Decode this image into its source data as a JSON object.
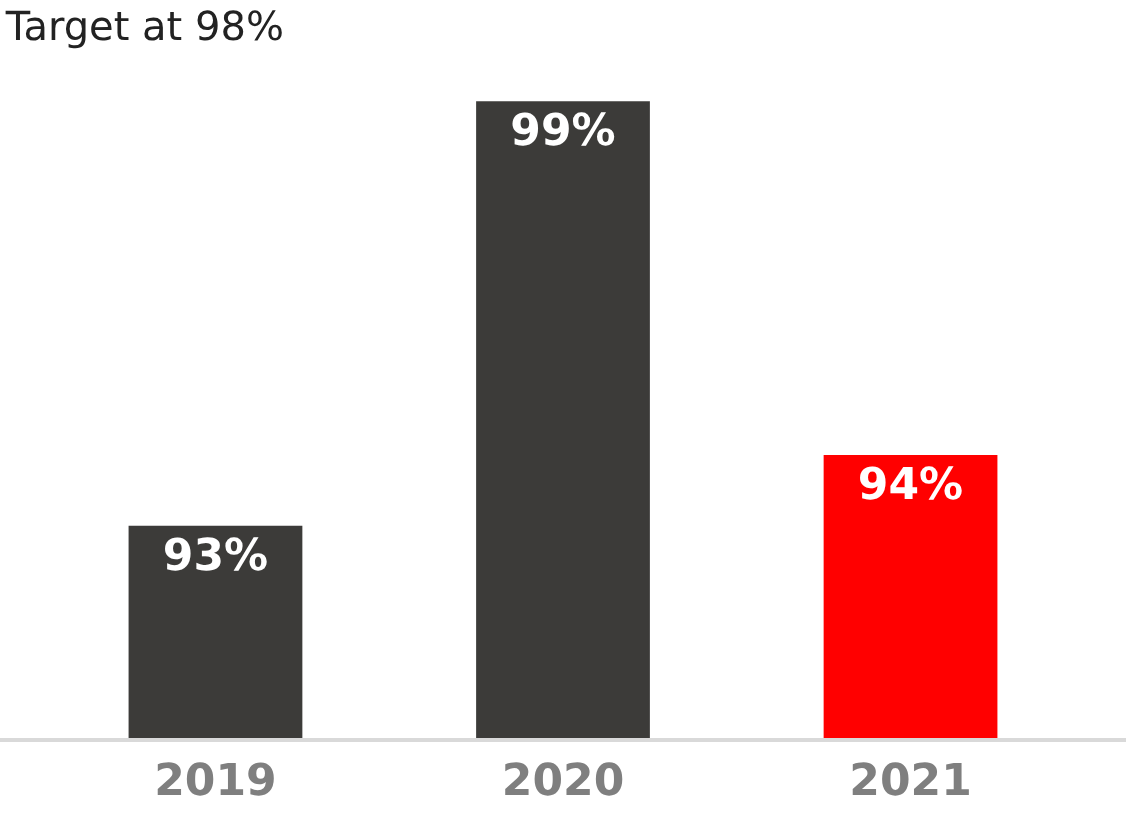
{
  "chart_data": {
    "type": "bar",
    "title": "Target at 98%",
    "categories": [
      "2019",
      "2020",
      "2021"
    ],
    "values": [
      93,
      99,
      94
    ],
    "colors": [
      "#3c3b39",
      "#3c3b39",
      "#ff0000"
    ],
    "value_labels": [
      "93%",
      "99%",
      "94%"
    ],
    "tick_labels": "x"
  }
}
